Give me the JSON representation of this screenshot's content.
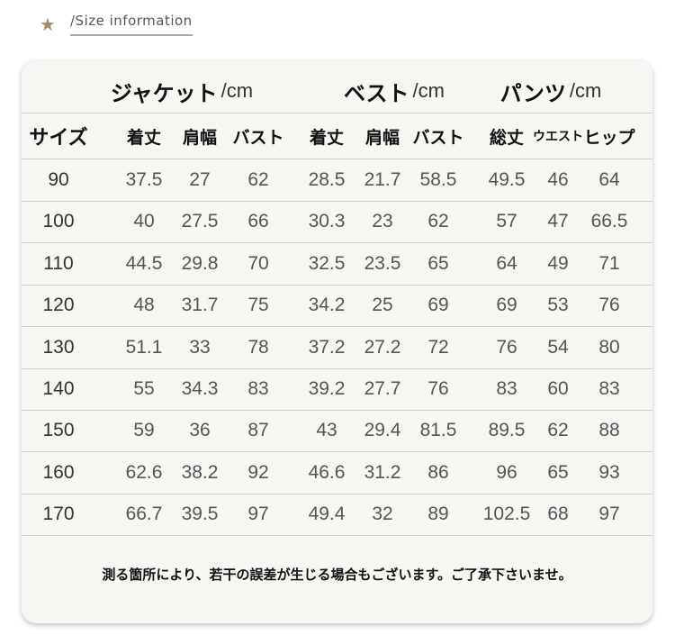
{
  "header": {
    "icon": "star-icon",
    "title": "/Size information",
    "accent": "#a88a6a"
  },
  "groups": [
    {
      "name": "ジャケット",
      "unit": "/cm"
    },
    {
      "name": "ベスト",
      "unit": "/cm"
    },
    {
      "name": "パンツ",
      "unit": "/cm"
    }
  ],
  "columns": [
    "サイズ",
    "着丈",
    "肩幅",
    "バスト",
    "着丈",
    "肩幅",
    "バスト",
    "総丈",
    "ウエスト",
    "ヒップ"
  ],
  "rows": [
    [
      "90",
      "37.5",
      "27",
      "62",
      "28.5",
      "21.7",
      "58.5",
      "49.5",
      "46",
      "64"
    ],
    [
      "100",
      "40",
      "27.5",
      "66",
      "30.3",
      "23",
      "62",
      "57",
      "47",
      "66.5"
    ],
    [
      "110",
      "44.5",
      "29.8",
      "70",
      "32.5",
      "23.5",
      "65",
      "64",
      "49",
      "71"
    ],
    [
      "120",
      "48",
      "31.7",
      "75",
      "34.2",
      "25",
      "69",
      "69",
      "53",
      "76"
    ],
    [
      "130",
      "51.1",
      "33",
      "78",
      "37.2",
      "27.2",
      "72",
      "76",
      "54",
      "80"
    ],
    [
      "140",
      "55",
      "34.3",
      "83",
      "39.2",
      "27.7",
      "76",
      "83",
      "60",
      "83"
    ],
    [
      "150",
      "59",
      "36",
      "87",
      "43",
      "29.4",
      "81.5",
      "89.5",
      "62",
      "88"
    ],
    [
      "160",
      "62.6",
      "38.2",
      "92",
      "46.6",
      "31.2",
      "86",
      "96",
      "65",
      "93"
    ],
    [
      "170",
      "66.7",
      "39.5",
      "97",
      "49.4",
      "32",
      "89",
      "102.5",
      "68",
      "97"
    ]
  ],
  "note": "測る箇所により、若干の誤差が生じる場合もございます。ご了承下さいませ。"
}
